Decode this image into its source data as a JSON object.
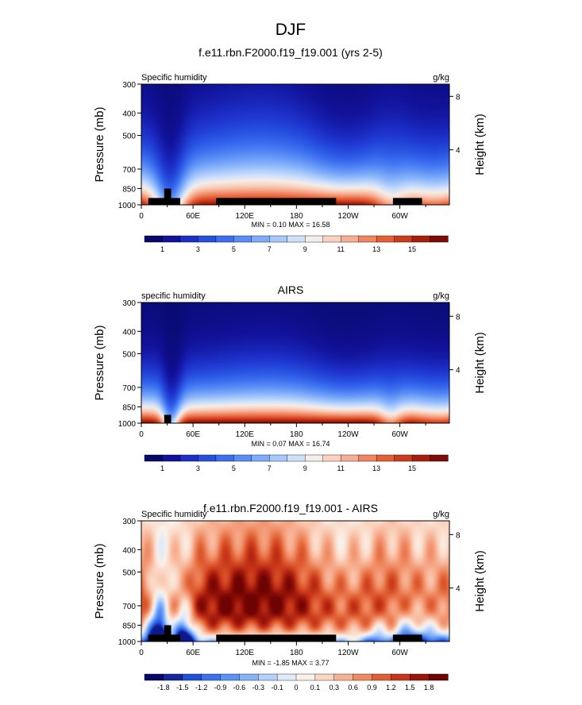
{
  "figure_title": "DJF",
  "chart_data": [
    {
      "type": "heatmap",
      "title": "f.e11.rbn.F2000.f19_f19.001 (yrs 2-5)",
      "left_label": "Specific humidity",
      "right_label": "g/kg",
      "ylabel": "Pressure (mb)",
      "y2label": "Height (km)",
      "x_ticks": [
        "0",
        "60E",
        "120E",
        "180",
        "120W",
        "60W"
      ],
      "x_tick_values": [
        0,
        60,
        120,
        180,
        240,
        300
      ],
      "xlim": [
        0,
        357.5
      ],
      "y_ticks": [
        "300",
        "400",
        "500",
        "700",
        "850",
        "1000"
      ],
      "y_tick_values": [
        300,
        400,
        500,
        700,
        850,
        1000
      ],
      "ylim": [
        1000,
        300
      ],
      "y2_ticks": [
        "8",
        "4"
      ],
      "y2_tick_values": [
        8,
        4
      ],
      "stats": "MIN =   0.10  MAX =  16.58",
      "min": 0.1,
      "max": 16.58,
      "colorbar_labels": [
        "1",
        "3",
        "5",
        "7",
        "9",
        "11",
        "13",
        "15"
      ],
      "colorbar_levels": [
        1,
        2,
        3,
        4,
        5,
        6,
        7,
        8,
        9,
        10,
        11,
        12,
        13,
        14,
        15,
        16
      ],
      "colorbar_colors": [
        "#08086b",
        "#11129a",
        "#1d2fc8",
        "#2650e0",
        "#3b6ef0",
        "#5a8ef6",
        "#7eacfa",
        "#a6c8fb",
        "#cfe0fb",
        "#f4eeea",
        "#fbd2c0",
        "#f8ae93",
        "#f0855f",
        "#e35f35",
        "#cc3b1c",
        "#a81e0d",
        "#7e0b05"
      ]
    },
    {
      "type": "heatmap",
      "title": "AIRS",
      "left_label": "specific humidity",
      "right_label": "g/kg",
      "ylabel": "Pressure (mb)",
      "y2label": "Height (km)",
      "x_ticks": [
        "0",
        "60E",
        "120E",
        "180",
        "120W",
        "60W"
      ],
      "x_tick_values": [
        0,
        60,
        120,
        180,
        240,
        300
      ],
      "xlim": [
        0,
        357.5
      ],
      "y_ticks": [
        "300",
        "400",
        "500",
        "700",
        "850",
        "1000"
      ],
      "y_tick_values": [
        300,
        400,
        500,
        700,
        850,
        1000
      ],
      "ylim": [
        1000,
        300
      ],
      "y2_ticks": [
        "8",
        "4"
      ],
      "y2_tick_values": [
        8,
        4
      ],
      "stats": "MIN =   0.07  MAX =  16.74",
      "min": 0.07,
      "max": 16.74,
      "colorbar_labels": [
        "1",
        "3",
        "5",
        "7",
        "9",
        "11",
        "13",
        "15"
      ],
      "colorbar_levels": [
        1,
        2,
        3,
        4,
        5,
        6,
        7,
        8,
        9,
        10,
        11,
        12,
        13,
        14,
        15,
        16
      ],
      "colorbar_colors": [
        "#08086b",
        "#11129a",
        "#1d2fc8",
        "#2650e0",
        "#3b6ef0",
        "#5a8ef6",
        "#7eacfa",
        "#a6c8fb",
        "#cfe0fb",
        "#f4eeea",
        "#fbd2c0",
        "#f8ae93",
        "#f0855f",
        "#e35f35",
        "#cc3b1c",
        "#a81e0d",
        "#7e0b05"
      ]
    },
    {
      "type": "heatmap",
      "title": "f.e11.rbn.F2000.f19_f19.001 - AIRS",
      "left_label": "Specific humidity",
      "right_label": "g/kg",
      "ylabel": "Pressure (mb)",
      "y2label": "Height (km)",
      "x_ticks": [
        "0",
        "60E",
        "120E",
        "180",
        "120W",
        "60W"
      ],
      "x_tick_values": [
        0,
        60,
        120,
        180,
        240,
        300
      ],
      "xlim": [
        0,
        357.5
      ],
      "y_ticks": [
        "300",
        "400",
        "500",
        "700",
        "850",
        "1000"
      ],
      "y_tick_values": [
        300,
        400,
        500,
        700,
        850,
        1000
      ],
      "ylim": [
        1000,
        300
      ],
      "y2_ticks": [
        "8",
        "4"
      ],
      "y2_tick_values": [
        8,
        4
      ],
      "stats": "MIN =  -1.85  MAX =   3.77",
      "min": -1.85,
      "max": 3.77,
      "colorbar_labels": [
        "-1.8",
        "-1.5",
        "-1.2",
        "-0.9",
        "-0.6",
        "-0.3",
        "-0.1",
        "0",
        "0.1",
        "0.3",
        "0.6",
        "0.9",
        "1.2",
        "1.5",
        "1.8"
      ],
      "colorbar_levels": [
        -1.8,
        -1.5,
        -1.2,
        -0.9,
        -0.6,
        -0.3,
        -0.1,
        0,
        0.1,
        0.3,
        0.6,
        0.9,
        1.2,
        1.5,
        1.8
      ],
      "colorbar_colors": [
        "#08086b",
        "#15259e",
        "#2050d8",
        "#3a72ef",
        "#5a92f5",
        "#86b2fa",
        "#b5d1fb",
        "#dfeafb",
        "#faf1ea",
        "#fbd6c2",
        "#f7b193",
        "#f08a62",
        "#e05e33",
        "#c73618",
        "#9a140a",
        "#6e0303"
      ]
    }
  ]
}
